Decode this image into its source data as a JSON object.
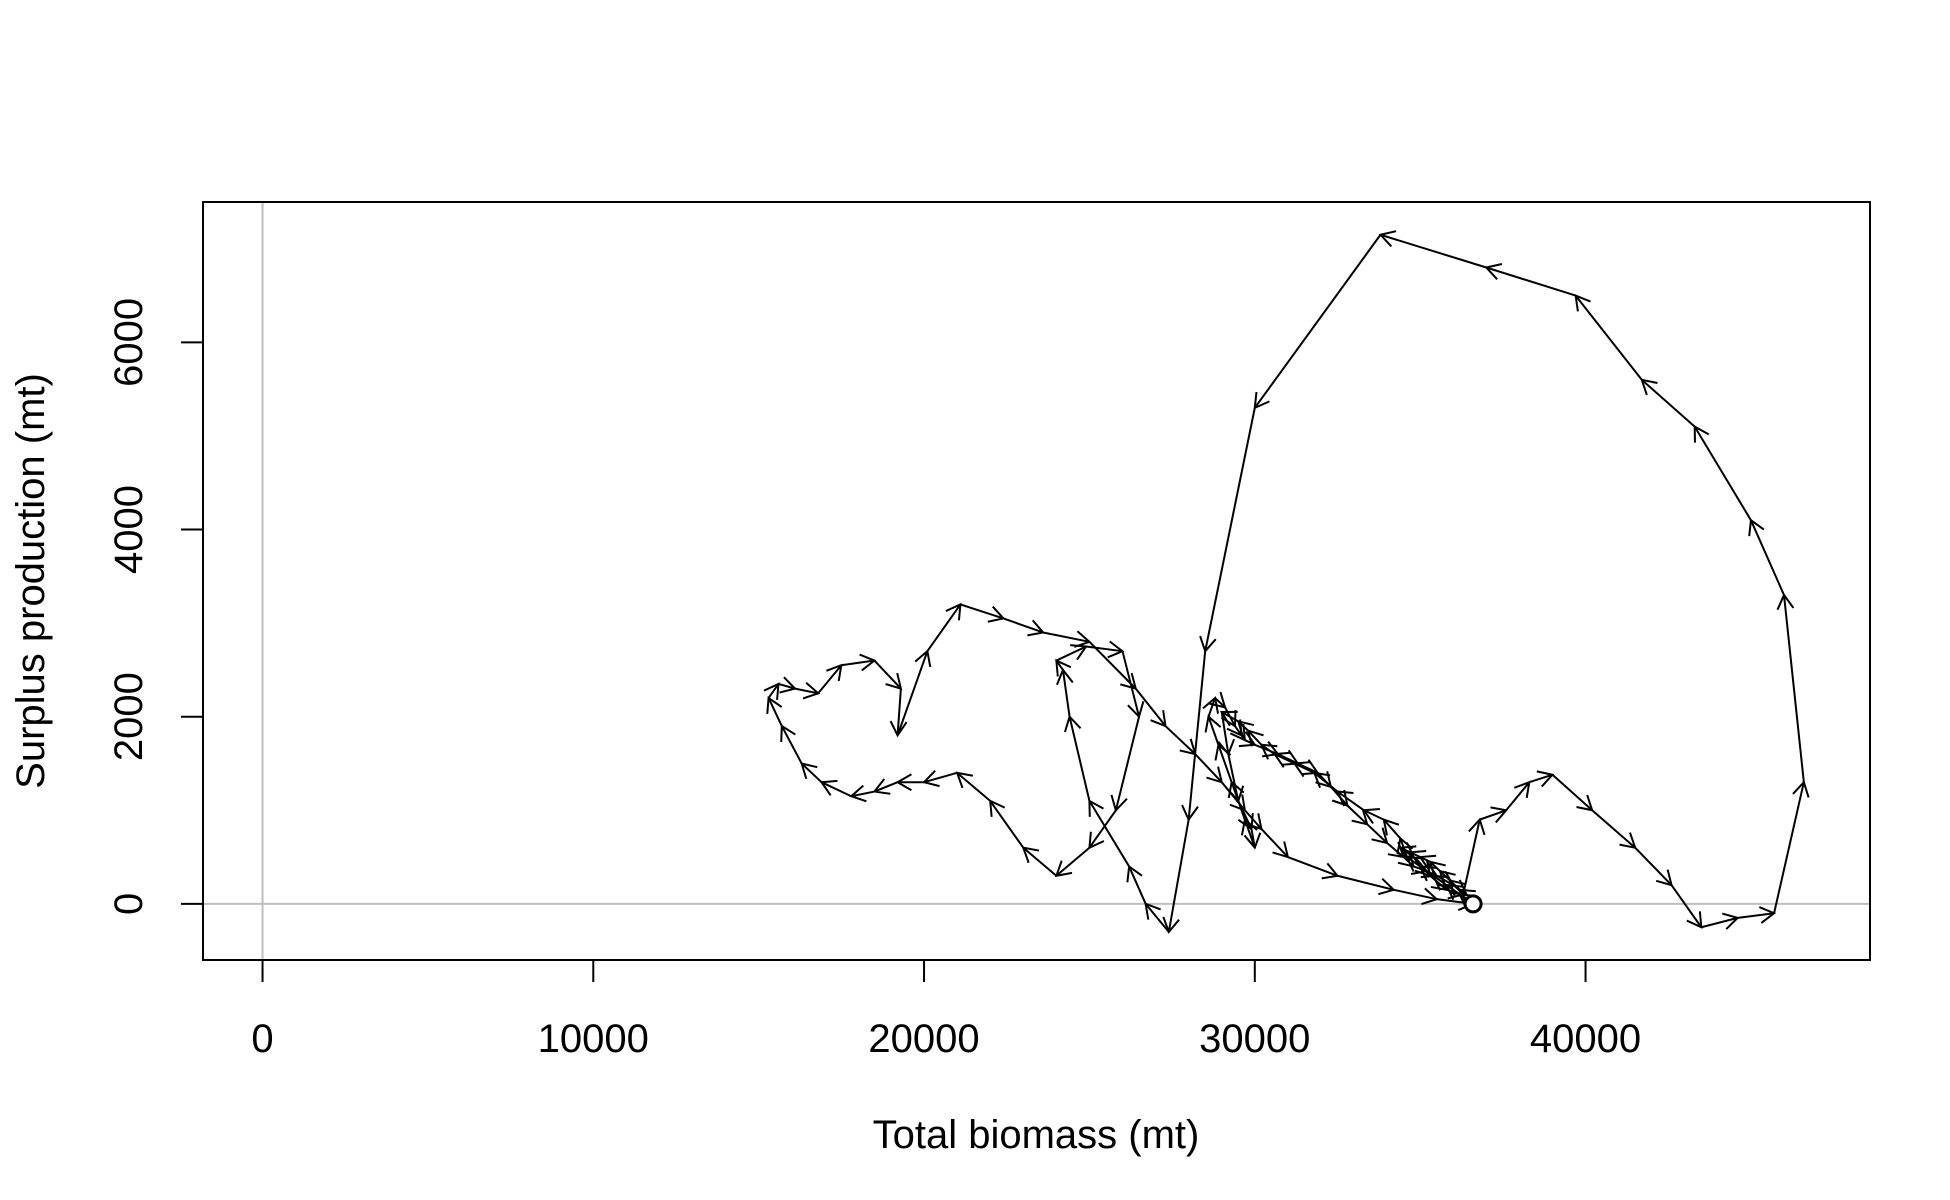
{
  "chart_data": {
    "type": "line",
    "title": "",
    "xlabel": "Total biomass (mt)",
    "ylabel": "Surplus production (mt)",
    "xlim": [
      -1800,
      48600
    ],
    "ylim": [
      -600,
      7500
    ],
    "xticks": [
      0,
      10000,
      20000,
      30000,
      40000
    ],
    "yticks": [
      0,
      2000,
      4000,
      6000
    ],
    "reference_lines": {
      "x": 0,
      "y": 0,
      "color": "#bebebe"
    },
    "grid": false,
    "legend": "none",
    "line_color": "#000000",
    "arrows": true,
    "end_marker": "open-circle",
    "series": [
      {
        "x": [
          36600,
          36200,
          35800,
          35400,
          35000,
          34600,
          34400,
          33900,
          33300,
          32500,
          31800,
          31200,
          30600,
          30200,
          29800,
          29500,
          29000,
          29200,
          29500,
          29900,
          30000,
          29700,
          29300,
          28900,
          28600,
          28800,
          29100,
          29400,
          29600,
          29700,
          30000,
          30700,
          31300,
          31900,
          32300,
          32800,
          33400,
          34000,
          34500,
          34800,
          35200,
          35500,
          36000,
          36400,
          36200,
          35900,
          35600,
          35300,
          35000,
          34700,
          34400,
          34800,
          35300,
          35800,
          36300,
          36800,
          37600,
          38300,
          39000,
          40200,
          41500,
          42600,
          43500,
          44600,
          45700,
          46600,
          46000,
          45000,
          43300,
          41700,
          39700,
          37000,
          33800,
          30000,
          28500,
          28000,
          27400,
          26700,
          26200,
          25000,
          24400,
          24200,
          24000,
          24900,
          26000,
          26500,
          25800,
          25000,
          24000,
          23000,
          22000,
          21000,
          20000,
          19200,
          18500,
          17800,
          16900,
          16300,
          15700,
          15300,
          15600,
          16100,
          16800,
          17500,
          18500,
          19300,
          19200,
          20100,
          21100,
          22400,
          23600,
          25000,
          26400,
          27300,
          28200,
          29000,
          29700,
          30200,
          31000,
          32500,
          34200,
          35500,
          36600
        ],
        "y": [
          0,
          100,
          200,
          300,
          400,
          500,
          700,
          900,
          1000,
          1200,
          1400,
          1500,
          1600,
          1700,
          1850,
          1950,
          2050,
          1600,
          1100,
          800,
          600,
          900,
          1300,
          1700,
          2000,
          2200,
          2100,
          1900,
          1800,
          1750,
          1700,
          1600,
          1500,
          1400,
          1250,
          1050,
          850,
          650,
          500,
          400,
          350,
          300,
          200,
          100,
          150,
          250,
          350,
          450,
          500,
          550,
          600,
          500,
          300,
          150,
          100,
          900,
          1000,
          1300,
          1380,
          1000,
          600,
          200,
          -250,
          -150,
          -100,
          1300,
          3300,
          4100,
          5100,
          5600,
          6500,
          6800,
          7150,
          5300,
          2700,
          900,
          -300,
          0,
          400,
          1100,
          2000,
          2500,
          2600,
          2750,
          2700,
          2000,
          1000,
          600,
          300,
          600,
          1100,
          1400,
          1300,
          1300,
          1200,
          1150,
          1300,
          1500,
          1900,
          2200,
          2350,
          2300,
          2250,
          2550,
          2600,
          2300,
          1800,
          2700,
          3200,
          3050,
          2900,
          2800,
          2300,
          1900,
          1600,
          1300,
          1000,
          800,
          500,
          300,
          150,
          50,
          0
        ]
      }
    ]
  }
}
